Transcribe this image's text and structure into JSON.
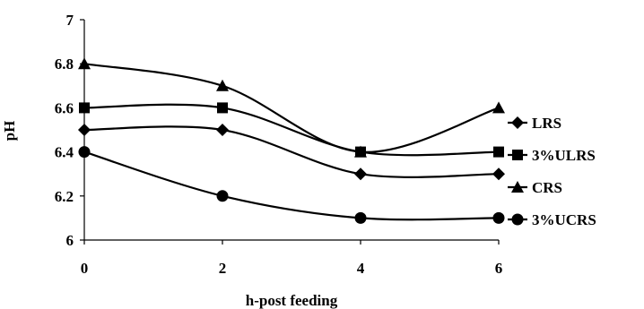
{
  "chart_data": {
    "type": "line",
    "title": "",
    "xlabel": "h-post feeding",
    "ylabel": "pH",
    "x": [
      0,
      2,
      4,
      6
    ],
    "x_ticks": [
      "0",
      "2",
      "4",
      "6"
    ],
    "ylim": [
      6,
      7
    ],
    "y_ticks": [
      "6",
      "6.2",
      "6.4",
      "6.6",
      "6.8",
      "7"
    ],
    "grid": false,
    "legend_position": "right",
    "series": [
      {
        "name": "LRS",
        "marker": "diamond",
        "values": [
          6.5,
          6.5,
          6.3,
          6.3
        ]
      },
      {
        "name": "3%ULRS",
        "marker": "square",
        "values": [
          6.6,
          6.6,
          6.4,
          6.4
        ]
      },
      {
        "name": "CRS",
        "marker": "triangle",
        "values": [
          6.8,
          6.7,
          6.4,
          6.6
        ]
      },
      {
        "name": "3%UCRS",
        "marker": "circle",
        "values": [
          6.4,
          6.2,
          6.1,
          6.1
        ]
      }
    ],
    "colors": {
      "line": "#000000",
      "marker": "#000000"
    }
  }
}
